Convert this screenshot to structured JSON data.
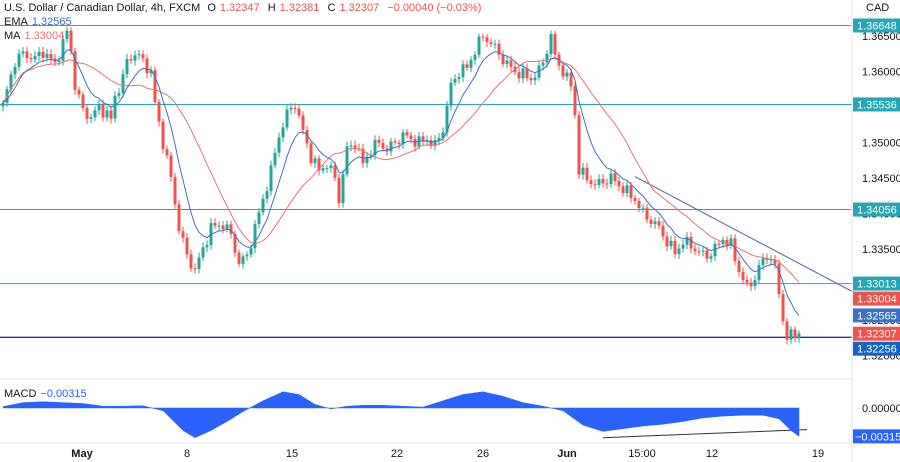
{
  "header": {
    "symbol": "U.S. Dollar / Canadian Dollar, 4h, FXCM",
    "o_label": "O",
    "o_value": "1.32347",
    "h_label": "H",
    "h_value": "1.32381",
    "c_label": "C",
    "c_value": "1.32307",
    "change": "−0.00040 (−0.03%)",
    "ema_label": "EMA",
    "ema_value": "1.32565",
    "ma_label": "MA",
    "ma_value": "1.33004",
    "macd_label": "MACD",
    "macd_value": "−0.00315",
    "currency": "CAD"
  },
  "colors": {
    "up": "#26a69a",
    "down": "#ef5350",
    "ema": "#3d6fc4",
    "ma": "#e57373",
    "level": "#26a6b4",
    "support": "#1e3b8a",
    "macd": "#2962ff"
  },
  "chart_data": {
    "type": "candlestick",
    "y_ticks": [
      "1.36500",
      "1.36000",
      "1.35500",
      "1.35000",
      "1.34500",
      "1.34000",
      "1.33500",
      "1.33000",
      "1.32500",
      "1.32000"
    ],
    "x_ticks": [
      "May",
      "8",
      "15",
      "22",
      "26",
      "Jun",
      "15:00",
      "12",
      "19"
    ],
    "levels": [
      1.36648,
      1.35536,
      1.34056,
      1.33013,
      1.32256
    ],
    "price_labels": [
      {
        "text": "1.36648",
        "kind": "level",
        "value": 1.36648
      },
      {
        "text": "1.35536",
        "kind": "level",
        "value": 1.35536
      },
      {
        "text": "1.34056",
        "kind": "level",
        "value": 1.34056
      },
      {
        "text": "1.33013",
        "kind": "level",
        "value": 1.33013
      },
      {
        "text": "1.33004",
        "kind": "ma",
        "value": 1.33004
      },
      {
        "text": "1.32565",
        "kind": "ema",
        "value": 1.32565
      },
      {
        "text": "1.32307",
        "kind": "last",
        "value": 1.32307
      },
      {
        "text": "1.32256",
        "kind": "support",
        "value": 1.32256
      }
    ],
    "macd_ticks": [
      "0.00000"
    ],
    "macd_last_label": "−0.00315",
    "close_path": [
      [
        0,
        1.3552
      ],
      [
        3,
        1.3615
      ],
      [
        5,
        1.3625
      ],
      [
        8,
        1.3618
      ],
      [
        10,
        1.3628
      ],
      [
        13,
        1.361
      ],
      [
        15,
        1.364
      ],
      [
        16,
        1.3655
      ],
      [
        17,
        1.363
      ],
      [
        18,
        1.358
      ],
      [
        20,
        1.3545
      ],
      [
        22,
        1.3535
      ],
      [
        24,
        1.355
      ],
      [
        26,
        1.354
      ],
      [
        27,
        1.3532
      ],
      [
        28,
        1.3565
      ],
      [
        30,
        1.359
      ],
      [
        31,
        1.3615
      ],
      [
        33,
        1.3625
      ],
      [
        35,
        1.3615
      ],
      [
        37,
        1.3598
      ],
      [
        38,
        1.3555
      ],
      [
        40,
        1.35
      ],
      [
        42,
        1.345
      ],
      [
        44,
        1.338
      ],
      [
        46,
        1.334
      ],
      [
        48,
        1.332
      ],
      [
        50,
        1.335
      ],
      [
        52,
        1.338
      ],
      [
        55,
        1.3385
      ],
      [
        57,
        1.337
      ],
      [
        59,
        1.333
      ],
      [
        61,
        1.334
      ],
      [
        63,
        1.338
      ],
      [
        65,
        1.342
      ],
      [
        67,
        1.346
      ],
      [
        69,
        1.351
      ],
      [
        71,
        1.354
      ],
      [
        73,
        1.3555
      ],
      [
        75,
        1.3515
      ],
      [
        77,
        1.348
      ],
      [
        79,
        1.346
      ],
      [
        81,
        1.347
      ],
      [
        83,
        1.345
      ],
      [
        84,
        1.342
      ],
      [
        86,
        1.349
      ],
      [
        88,
        1.35
      ],
      [
        90,
        1.347
      ],
      [
        92,
        1.349
      ],
      [
        94,
        1.35
      ],
      [
        96,
        1.349
      ],
      [
        98,
        1.35
      ],
      [
        100,
        1.351
      ],
      [
        102,
        1.3505
      ],
      [
        104,
        1.35
      ],
      [
        106,
        1.3505
      ],
      [
        108,
        1.3495
      ],
      [
        110,
        1.352
      ],
      [
        112,
        1.358
      ],
      [
        114,
        1.36
      ],
      [
        116,
        1.3605
      ],
      [
        118,
        1.363
      ],
      [
        120,
        1.365
      ],
      [
        122,
        1.364
      ],
      [
        124,
        1.3625
      ],
      [
        126,
        1.361
      ],
      [
        128,
        1.36
      ],
      [
        130,
        1.3595
      ],
      [
        132,
        1.359
      ],
      [
        134,
        1.36
      ],
      [
        136,
        1.363
      ],
      [
        137,
        1.365
      ],
      [
        138,
        1.362
      ],
      [
        140,
        1.36
      ],
      [
        142,
        1.358
      ],
      [
        143,
        1.354
      ],
      [
        144,
        1.346
      ],
      [
        146,
        1.345
      ],
      [
        148,
        1.344
      ],
      [
        150,
        1.3445
      ],
      [
        152,
        1.345
      ],
      [
        154,
        1.344
      ],
      [
        156,
        1.343
      ],
      [
        158,
        1.342
      ],
      [
        160,
        1.34
      ],
      [
        162,
        1.339
      ],
      [
        164,
        1.338
      ],
      [
        166,
        1.336
      ],
      [
        168,
        1.3345
      ],
      [
        170,
        1.336
      ],
      [
        172,
        1.3355
      ],
      [
        174,
        1.3345
      ],
      [
        176,
        1.334
      ],
      [
        178,
        1.335
      ],
      [
        180,
        1.3365
      ],
      [
        182,
        1.3355
      ],
      [
        184,
        1.332
      ],
      [
        186,
        1.3295
      ],
      [
        188,
        1.331
      ],
      [
        190,
        1.3335
      ],
      [
        192,
        1.334
      ],
      [
        193,
        1.332
      ],
      [
        194,
        1.329
      ],
      [
        195,
        1.325
      ],
      [
        196,
        1.3225
      ],
      [
        198,
        1.323
      ],
      [
        199,
        1.3231
      ]
    ],
    "trendline": {
      "from": [
        158,
        1.3452
      ],
      "to": [
        213,
        1.3288
      ]
    },
    "macd_series": [
      [
        0,
        0.00015
      ],
      [
        5,
        0.0006
      ],
      [
        10,
        0.0007
      ],
      [
        15,
        0.0006
      ],
      [
        20,
        0.0005
      ],
      [
        25,
        0.0002
      ],
      [
        30,
        0.0002
      ],
      [
        35,
        0.00025
      ],
      [
        40,
        -0.0003
      ],
      [
        45,
        -0.0025
      ],
      [
        48,
        -0.0033
      ],
      [
        52,
        -0.0025
      ],
      [
        56,
        -0.0015
      ],
      [
        60,
        -0.0004
      ],
      [
        65,
        0.0008
      ],
      [
        70,
        0.0018
      ],
      [
        74,
        0.0015
      ],
      [
        78,
        0.0004
      ],
      [
        82,
        -0.0001
      ],
      [
        86,
        0.0002
      ],
      [
        90,
        0.0003
      ],
      [
        95,
        0.0003
      ],
      [
        100,
        0.0002
      ],
      [
        105,
        0.0001
      ],
      [
        110,
        0.0008
      ],
      [
        115,
        0.0015
      ],
      [
        120,
        0.0018
      ],
      [
        125,
        0.0013
      ],
      [
        130,
        0.0006
      ],
      [
        135,
        0.0002
      ],
      [
        140,
        -0.0003
      ],
      [
        145,
        -0.0019
      ],
      [
        150,
        -0.0026
      ],
      [
        155,
        -0.0023
      ],
      [
        160,
        -0.002
      ],
      [
        165,
        -0.0018
      ],
      [
        170,
        -0.0015
      ],
      [
        175,
        -0.0011
      ],
      [
        180,
        -0.0009
      ],
      [
        185,
        -0.0008
      ],
      [
        190,
        -0.0008
      ],
      [
        194,
        -0.0012
      ],
      [
        197,
        -0.0025
      ],
      [
        199,
        -0.00315
      ]
    ],
    "macd_trendline": {
      "from": [
        150,
        -0.0033
      ],
      "to": [
        201,
        -0.0024
      ]
    }
  }
}
